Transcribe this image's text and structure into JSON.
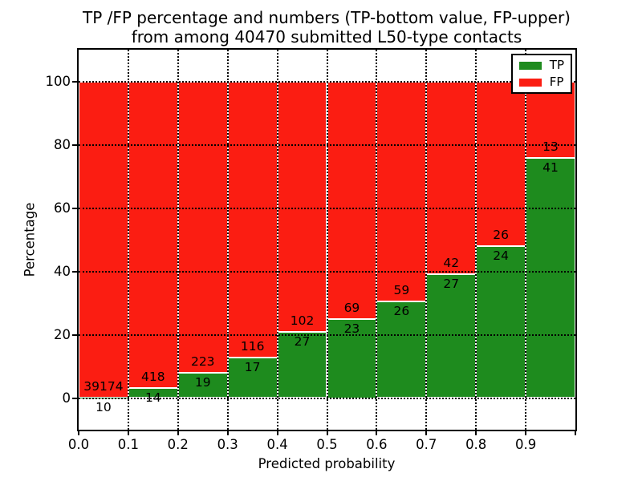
{
  "title": {
    "line1": "TP /FP percentage and numbers (TP-bottom value, FP-upper)",
    "line2": "from among 40470 submitted L50-type contacts"
  },
  "legend": {
    "items": [
      {
        "label": "TP",
        "color": "#1e8b1e"
      },
      {
        "label": "FP",
        "color": "#fb1d12"
      }
    ]
  },
  "chart_data": {
    "type": "bar",
    "stacked": true,
    "title": "TP /FP percentage and numbers (TP-bottom value, FP-upper) from among 40470 submitted L50-type contacts",
    "xlabel": "Predicted probability",
    "ylabel": "Percentage",
    "total_contacts": 40470,
    "categories": [
      "0.0-0.1",
      "0.1-0.2",
      "0.2-0.3",
      "0.3-0.4",
      "0.4-0.5",
      "0.5-0.6",
      "0.6-0.7",
      "0.7-0.8",
      "0.8-0.9",
      "0.9-1.0"
    ],
    "series": [
      {
        "name": "TP",
        "position": "bottom",
        "color": "#1e8b1e",
        "counts": [
          10,
          14,
          19,
          17,
          27,
          23,
          26,
          27,
          24,
          41
        ]
      },
      {
        "name": "FP",
        "position": "top",
        "color": "#fb1d12",
        "counts": [
          39174,
          418,
          223,
          116,
          102,
          69,
          59,
          42,
          26,
          13
        ]
      }
    ],
    "tp_percent": [
      0.03,
      3.24,
      7.85,
      12.78,
      20.93,
      25.0,
      30.59,
      39.13,
      48.0,
      75.93
    ],
    "bars_stack_to": 100,
    "x_tick_labels": [
      "0.0",
      "0.1",
      "0.2",
      "0.3",
      "0.4",
      "0.5",
      "0.6",
      "0.7",
      "0.8",
      "0.9"
    ],
    "y_ticks": [
      0,
      20,
      40,
      60,
      80,
      100
    ],
    "ylim": [
      -10,
      110
    ],
    "grid": "dotted black, on",
    "legend_position": "upper right",
    "background": "#ffffff"
  }
}
